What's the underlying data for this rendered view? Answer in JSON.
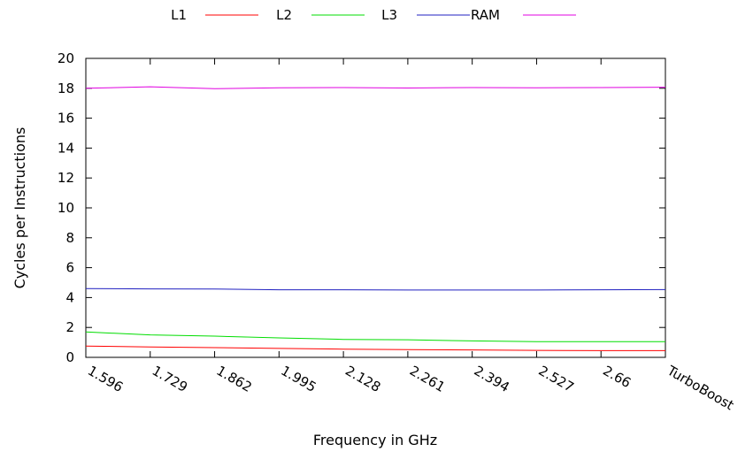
{
  "chart_data": {
    "type": "line",
    "title": "",
    "xlabel": "Frequency in GHz",
    "ylabel": "Cycles per Instructions",
    "categories": [
      "1.596",
      "1.729",
      "1.862",
      "1.995",
      "2.128",
      "2.261",
      "2.394",
      "2.527",
      "2.66",
      "TurboBoost"
    ],
    "ylim": [
      0,
      20
    ],
    "yticks": [
      0,
      2,
      4,
      6,
      8,
      10,
      12,
      14,
      16,
      18,
      20
    ],
    "grid": false,
    "legend_position": "top",
    "series": [
      {
        "name": "L1",
        "color": "#ff0000",
        "values": [
          0.75,
          0.7,
          0.65,
          0.6,
          0.55,
          0.52,
          0.5,
          0.47,
          0.45,
          0.45
        ]
      },
      {
        "name": "L2",
        "color": "#00dd00",
        "values": [
          1.7,
          1.5,
          1.42,
          1.3,
          1.2,
          1.18,
          1.1,
          1.05,
          1.05,
          1.05
        ]
      },
      {
        "name": "L3",
        "color": "#2020c0",
        "values": [
          4.6,
          4.58,
          4.57,
          4.52,
          4.52,
          4.5,
          4.5,
          4.5,
          4.52,
          4.53
        ]
      },
      {
        "name": "RAM",
        "color": "#e000e0",
        "values": [
          18.0,
          18.1,
          17.97,
          18.03,
          18.05,
          18.02,
          18.05,
          18.03,
          18.05,
          18.07
        ]
      }
    ]
  }
}
